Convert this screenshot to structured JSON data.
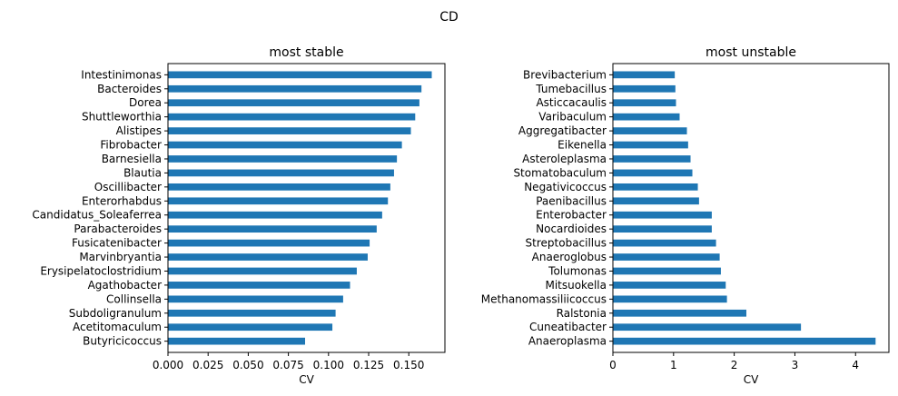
{
  "figure_title": "CD",
  "colors": {
    "bar": "#1f77b4"
  },
  "chart_data": [
    {
      "type": "bar",
      "orientation": "horizontal",
      "title": "most stable",
      "xlabel": "CV",
      "ylabel": "",
      "xlim": [
        0.0,
        0.1725
      ],
      "xticks": [
        "0.000",
        "0.025",
        "0.050",
        "0.075",
        "0.100",
        "0.125",
        "0.150"
      ],
      "grid": false,
      "categories": [
        "Intestinimonas",
        "Bacteroides",
        "Dorea",
        "Shuttleworthia",
        "Alistipes",
        "Fibrobacter",
        "Barnesiella",
        "Blautia",
        "Oscillibacter",
        "Enterorhabdus",
        "Candidatus_Soleaferrea",
        "Parabacteroides",
        "Fusicatenibacter",
        "Marvinbryantia",
        "Erysipelatoclostridium",
        "Agathobacter",
        "Collinsella",
        "Subdoligranulum",
        "Acetitomaculum",
        "Butyricicoccus"
      ],
      "values": [
        0.1643,
        0.1579,
        0.1566,
        0.154,
        0.1513,
        0.1457,
        0.1426,
        0.1408,
        0.1385,
        0.137,
        0.1334,
        0.13,
        0.1256,
        0.1244,
        0.1176,
        0.1134,
        0.1091,
        0.1044,
        0.1024,
        0.0854
      ]
    },
    {
      "type": "bar",
      "orientation": "horizontal",
      "title": "most unstable",
      "xlabel": "CV",
      "ylabel": "",
      "xlim": [
        0,
        4.55
      ],
      "xticks": [
        "0",
        "1",
        "2",
        "3",
        "4"
      ],
      "grid": false,
      "categories": [
        "Brevibacterium",
        "Tumebacillus",
        "Asticcacaulis",
        "Varibaculum",
        "Aggregatibacter",
        "Eikenella",
        "Asteroleplasma",
        "Stomatobaculum",
        "Negativicoccus",
        "Paenibacillus",
        "Enterobacter",
        "Nocardioides",
        "Streptobacillus",
        "Anaeroglobus",
        "Tolumonas",
        "Mitsuokella",
        "Methanomassiliicoccus",
        "Ralstonia",
        "Cuneatibacter",
        "Anaeroplasma"
      ],
      "values": [
        1.02,
        1.03,
        1.04,
        1.1,
        1.22,
        1.24,
        1.28,
        1.31,
        1.4,
        1.42,
        1.63,
        1.63,
        1.7,
        1.76,
        1.78,
        1.86,
        1.88,
        2.2,
        3.1,
        4.33
      ]
    }
  ]
}
